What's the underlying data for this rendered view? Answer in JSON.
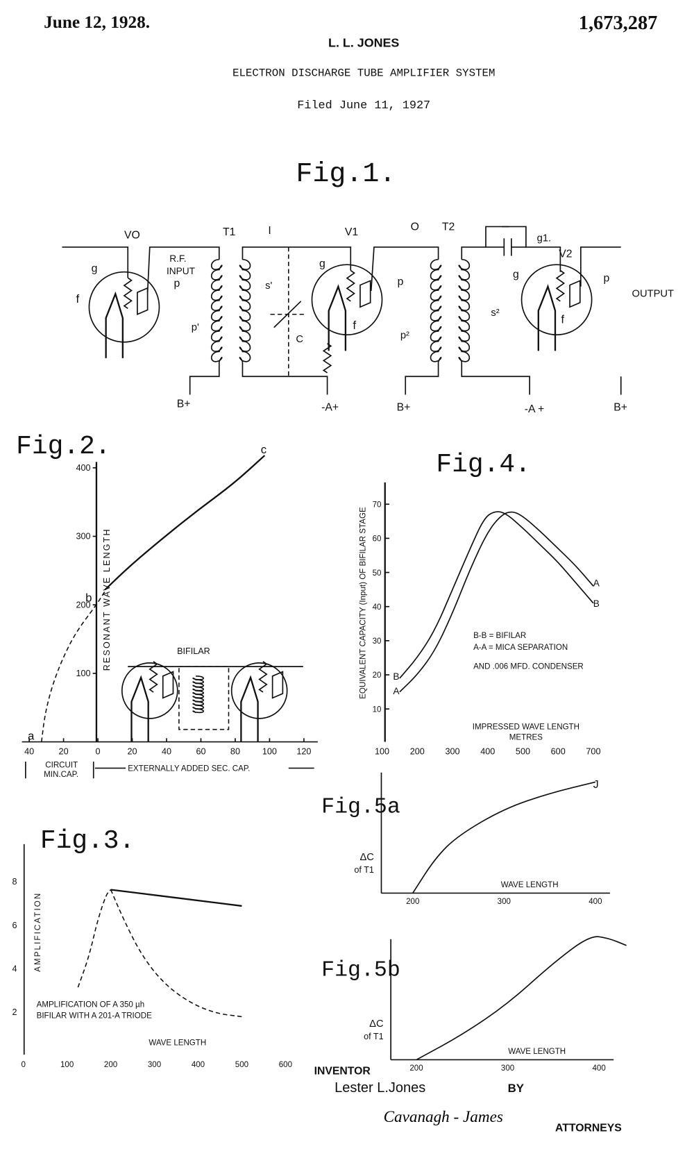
{
  "header": {
    "date": "June 12, 1928.",
    "inventor_name": "L. L. JONES",
    "patent_number": "1,673,287",
    "title": "ELECTRON DISCHARGE TUBE AMPLIFIER SYSTEM",
    "filed": "Filed June 11, 1927"
  },
  "fig1": {
    "title": "Fig.1.",
    "labels": {
      "V0": "VO",
      "T1": "T1",
      "I": "I",
      "V1": "V1",
      "O": "O",
      "T2": "T2",
      "g1": "g1.",
      "V2": "V2",
      "g": "g",
      "f": "f",
      "p": "p",
      "rf": "R.F.",
      "input": "INPUT",
      "p1": "p'",
      "s1": "s'",
      "C": "C",
      "p2": "p²",
      "s2": "s²",
      "output": "OUTPUT",
      "bplus": "B+",
      "aplus": "-A+",
      "aplus2": "-A +"
    }
  },
  "chart_data": [
    {
      "type": "line",
      "title": "Fig.2.",
      "ylabel": "RESONANT WAVE LENGTH",
      "xlabel": "EXTERNALLY ADDED SEC. CAP.",
      "xlabel_left": [
        "CIRCUIT",
        "MIN.CAP."
      ],
      "x_ticks": [
        "40",
        "20",
        "0",
        "20",
        "40",
        "60",
        "80",
        "100",
        "120"
      ],
      "y_ticks": [
        "100",
        "200",
        "300",
        "400"
      ],
      "xlim": [
        -40,
        120
      ],
      "ylim": [
        0,
        400
      ],
      "point_labels": [
        "a",
        "b",
        "c"
      ],
      "inset_label": "BIFILAR",
      "series": [
        {
          "style": "dashed",
          "points": [
            [
              -32,
              0
            ],
            [
              -30,
              40
            ],
            [
              -26,
              80
            ],
            [
              -20,
              120
            ],
            [
              -12,
              160
            ],
            [
              0,
              200
            ],
            [
              5,
              220
            ]
          ]
        },
        {
          "style": "solid",
          "points": [
            [
              5,
              222
            ],
            [
              20,
              258
            ],
            [
              40,
              300
            ],
            [
              60,
              340
            ],
            [
              80,
              377
            ],
            [
              98,
              418
            ]
          ]
        }
      ]
    },
    {
      "type": "line",
      "title": "Fig.4.",
      "ylabel": "EQUIVALENT CAPACITY (Input) OF BIFILAR STAGE",
      "xlabel": [
        "IMPRESSED WAVE LENGTH",
        "METRES"
      ],
      "x_ticks": [
        "100",
        "200",
        "300",
        "400",
        "500",
        "600",
        "700"
      ],
      "y_ticks": [
        "10",
        "20",
        "30",
        "40",
        "50",
        "60",
        "70"
      ],
      "xlim": [
        100,
        750
      ],
      "ylim": [
        0,
        75
      ],
      "legend": [
        "B-B = BIFILAR",
        "A-A = MICA SEPARATION",
        "AND .006 MFD. CONDENSER"
      ],
      "series": [
        {
          "name": "B",
          "points": [
            [
              150,
              19
            ],
            [
              200,
              25
            ],
            [
              250,
              33
            ],
            [
              300,
              45
            ],
            [
              350,
              57
            ],
            [
              390,
              66
            ],
            [
              420,
              68
            ],
            [
              450,
              67.5
            ],
            [
              500,
              63
            ],
            [
              550,
              58
            ],
            [
              600,
              53
            ],
            [
              650,
              47
            ],
            [
              700,
              41
            ]
          ]
        },
        {
          "name": "A",
          "points": [
            [
              150,
              15
            ],
            [
              200,
              20
            ],
            [
              250,
              27
            ],
            [
              300,
              38
            ],
            [
              350,
              51
            ],
            [
              400,
              62
            ],
            [
              440,
              67
            ],
            [
              470,
              68
            ],
            [
              500,
              66.5
            ],
            [
              550,
              62
            ],
            [
              600,
              57
            ],
            [
              650,
              52
            ],
            [
              700,
              46
            ]
          ]
        }
      ]
    },
    {
      "type": "line",
      "title": "Fig.3.",
      "ylabel": "AMPLIFICATION",
      "xlabel": "WAVE LENGTH",
      "x_ticks": [
        "0",
        "100",
        "200",
        "300",
        "400",
        "500",
        "600"
      ],
      "y_ticks": [
        "2",
        "4",
        "6",
        "8"
      ],
      "xlim": [
        0,
        600
      ],
      "ylim": [
        0,
        9
      ],
      "annotation": [
        "AMPLIFICATION OF A 350 µh",
        "BIFILAR WITH A 201-A TRIODE"
      ],
      "series": [
        {
          "style": "solid",
          "points": [
            [
              200,
              7.6
            ],
            [
              300,
              7.35
            ],
            [
              400,
              7.1
            ],
            [
              500,
              6.85
            ]
          ]
        },
        {
          "style": "dashed",
          "points": [
            [
              125,
              3.1
            ],
            [
              150,
              4.5
            ],
            [
              170,
              6.2
            ],
            [
              190,
              7.4
            ],
            [
              200,
              7.6
            ]
          ]
        },
        {
          "style": "dashed",
          "points": [
            [
              200,
              7.6
            ],
            [
              230,
              6.2
            ],
            [
              270,
              4.6
            ],
            [
              320,
              3.3
            ],
            [
              380,
              2.4
            ],
            [
              440,
              1.9
            ],
            [
              500,
              1.75
            ]
          ]
        }
      ]
    },
    {
      "type": "line",
      "title": "Fig.5a",
      "ylabel": [
        "ΔC",
        "of T1"
      ],
      "xlabel": "WAVE LENGTH",
      "x_ticks": [
        "200",
        "300",
        "400"
      ],
      "xlim": [
        170,
        420
      ],
      "ylim": [
        0,
        1.1
      ],
      "point_labels": [
        "J"
      ],
      "series": [
        {
          "points": [
            [
              200,
              0
            ],
            [
              225,
              0.32
            ],
            [
              250,
              0.52
            ],
            [
              300,
              0.76
            ],
            [
              350,
              0.9
            ],
            [
              400,
              1.0
            ]
          ]
        }
      ]
    },
    {
      "type": "line",
      "title": "Fig.5b",
      "ylabel": [
        "ΔC",
        "of T1"
      ],
      "xlabel": "WAVE LENGTH",
      "x_ticks": [
        "200",
        "300",
        "400"
      ],
      "xlim": [
        170,
        440
      ],
      "ylim": [
        0,
        1.1
      ],
      "series": [
        {
          "points": [
            [
              200,
              0
            ],
            [
              250,
              0.2
            ],
            [
              300,
              0.45
            ],
            [
              350,
              0.78
            ],
            [
              390,
              1.0
            ],
            [
              410,
              0.98
            ],
            [
              430,
              0.92
            ]
          ]
        }
      ]
    }
  ],
  "footer": {
    "inventor_label": "INVENTOR",
    "inventor_signature": "Lester L.Jones",
    "by": "BY",
    "attorney_signature": "Cavanagh - James",
    "attorneys": "ATTORNEYS"
  }
}
